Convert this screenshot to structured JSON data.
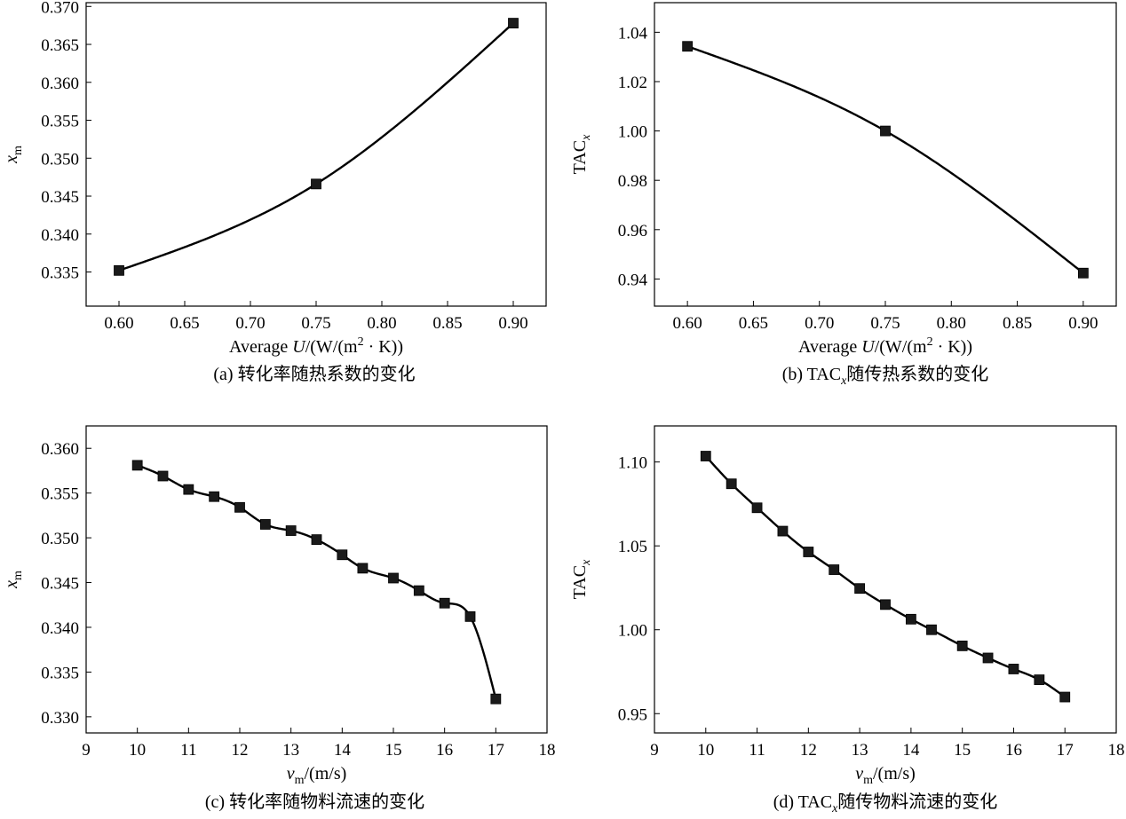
{
  "chart_data": [
    {
      "id": "a",
      "type": "line",
      "x": [
        0.6,
        0.75,
        0.9
      ],
      "y": [
        0.3352,
        0.3466,
        0.3678
      ],
      "xlim": [
        0.575,
        0.925
      ],
      "ylim": [
        0.3305,
        0.3705
      ],
      "xticks": [
        0.6,
        0.65,
        0.7,
        0.75,
        0.8,
        0.85,
        0.9
      ],
      "yticks": [
        0.335,
        0.34,
        0.345,
        0.35,
        0.355,
        0.36,
        0.365,
        0.37
      ],
      "xtick_decimals": 2,
      "ytick_decimals": 3,
      "xlabel": {
        "prefix": "Average ",
        "var": "U",
        "mid": "/(W/(m",
        "sup": "2",
        "suffix": " · K))"
      },
      "ylabel": {
        "var": "x",
        "sub": "m"
      },
      "caption": "(a) 转化率随热系数的变化",
      "grid": false,
      "marker": "square"
    },
    {
      "id": "b",
      "type": "line",
      "x": [
        0.6,
        0.75,
        0.9
      ],
      "y": [
        1.0343,
        1.0,
        0.9424
      ],
      "xlim": [
        0.575,
        0.925
      ],
      "ylim": [
        0.929,
        1.052
      ],
      "xticks": [
        0.6,
        0.65,
        0.7,
        0.75,
        0.8,
        0.85,
        0.9
      ],
      "yticks": [
        0.94,
        0.96,
        0.98,
        1.0,
        1.02,
        1.04
      ],
      "xtick_decimals": 2,
      "ytick_decimals": 2,
      "xlabel": {
        "prefix": "Average ",
        "var": "U",
        "mid": "/(W/(m",
        "sup": "2",
        "suffix": " · K))"
      },
      "ylabel": {
        "main": "TAC",
        "sub": "x"
      },
      "caption": {
        "pre": "(b) TAC",
        "sub": "x",
        "post": "随传热系数的变化"
      },
      "grid": false,
      "marker": "square"
    },
    {
      "id": "c",
      "type": "line",
      "x": [
        10,
        10.5,
        11,
        11.5,
        12,
        12.5,
        13,
        13.5,
        14,
        14.4,
        15,
        15.5,
        16,
        16.5,
        17
      ],
      "y": [
        0.3581,
        0.3569,
        0.3554,
        0.3546,
        0.3534,
        0.3515,
        0.3508,
        0.3498,
        0.3481,
        0.3466,
        0.3455,
        0.3441,
        0.3427,
        0.3412,
        0.332
      ],
      "xlim": [
        9,
        18
      ],
      "ylim": [
        0.3282,
        0.3625
      ],
      "xticks": [
        9,
        10,
        11,
        12,
        13,
        14,
        15,
        16,
        17,
        18
      ],
      "yticks": [
        0.33,
        0.335,
        0.34,
        0.345,
        0.35,
        0.355,
        0.36
      ],
      "xtick_decimals": 0,
      "ytick_decimals": 3,
      "xlabel": {
        "var": "v",
        "sub": "m",
        "suffix": "/(m/s)"
      },
      "ylabel": {
        "var": "x",
        "sub": "m"
      },
      "caption": "(c) 转化率随物料流速的变化",
      "grid": false,
      "marker": "square"
    },
    {
      "id": "d",
      "type": "line",
      "x": [
        10,
        10.5,
        11,
        11.5,
        12,
        12.5,
        13,
        13.5,
        14,
        14.4,
        15,
        15.5,
        16,
        16.5,
        17
      ],
      "y": [
        1.1035,
        1.087,
        1.0727,
        1.0588,
        1.0464,
        1.0358,
        1.0246,
        1.015,
        1.0063,
        1.0,
        0.9904,
        0.9832,
        0.9766,
        0.9702,
        0.9599
      ],
      "xlim": [
        9,
        18
      ],
      "ylim": [
        0.9385,
        1.1215
      ],
      "xticks": [
        9,
        10,
        11,
        12,
        13,
        14,
        15,
        16,
        17,
        18
      ],
      "yticks": [
        0.95,
        1.0,
        1.05,
        1.1
      ],
      "xtick_decimals": 0,
      "ytick_decimals": 2,
      "xlabel": {
        "var": "v",
        "sub": "m",
        "suffix": "/(m/s)"
      },
      "ylabel": {
        "main": "TAC",
        "sub": "x"
      },
      "caption": {
        "pre": "(d) TAC",
        "sub": "x",
        "post": "随传物料流速的变化"
      },
      "grid": false,
      "marker": "square"
    }
  ]
}
